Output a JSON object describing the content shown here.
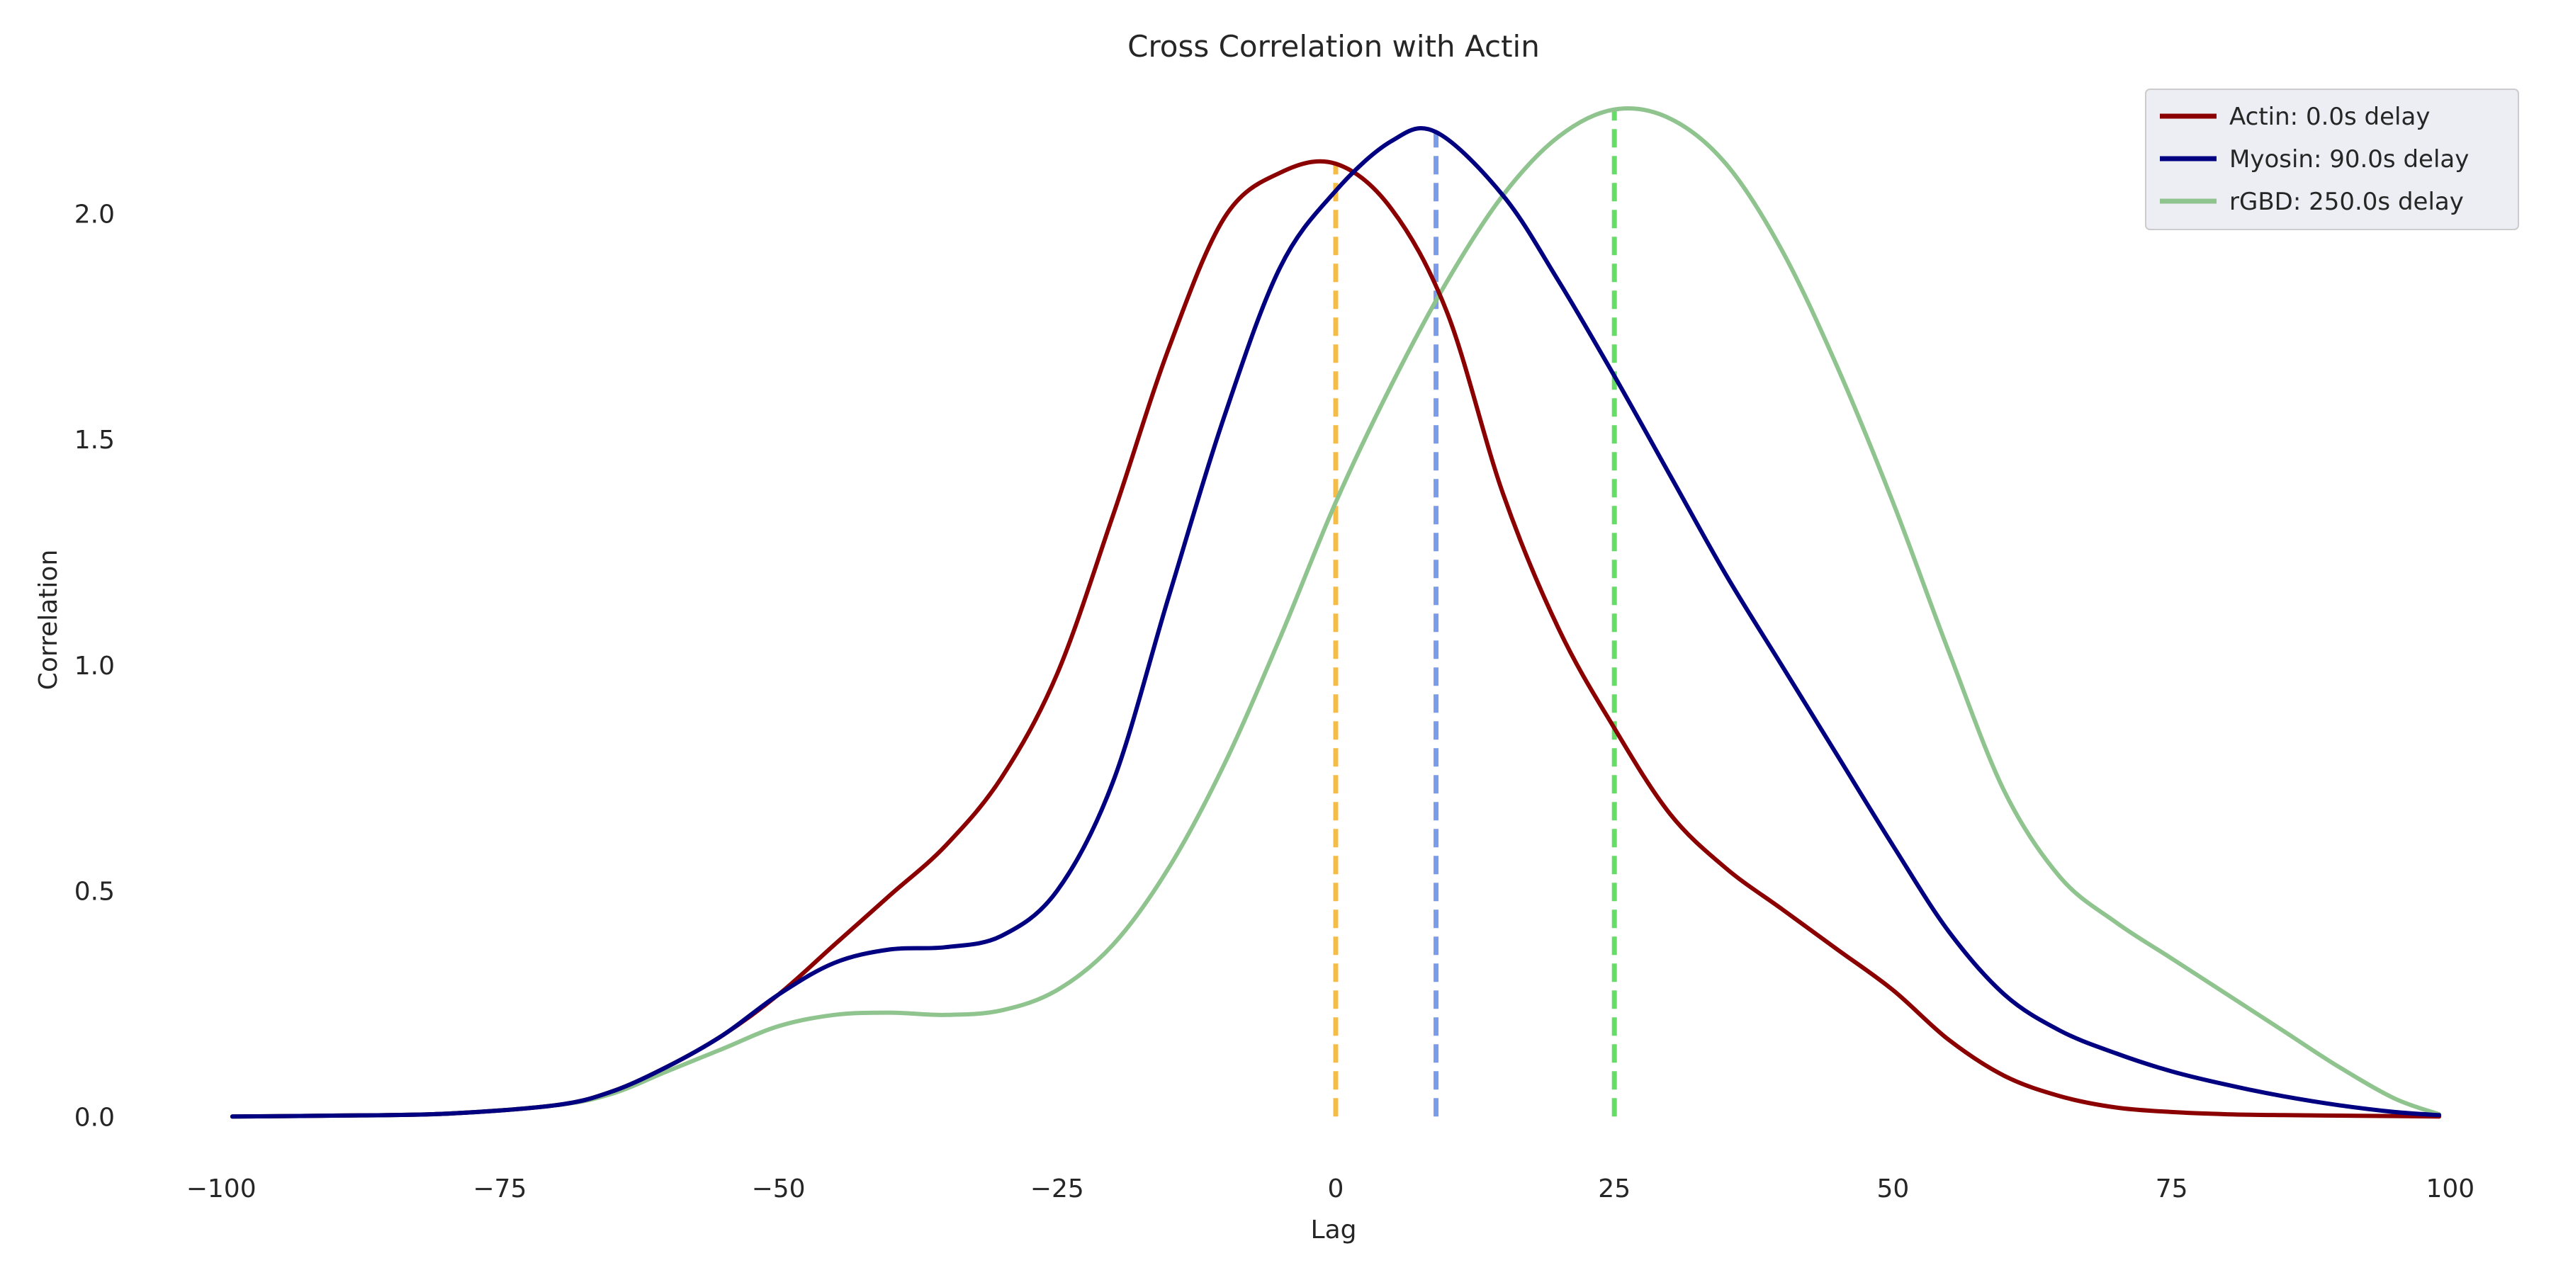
{
  "chart_data": {
    "type": "line",
    "title": "Cross Correlation with Actin",
    "xlabel": "Lag",
    "ylabel": "Correlation",
    "xlim": [
      -103,
      103
    ],
    "ylim": [
      -0.1,
      2.3
    ],
    "xticks": [
      -100,
      -75,
      -50,
      -25,
      0,
      25,
      50,
      75,
      100
    ],
    "xtick_labels": [
      "−100",
      "−75",
      "−50",
      "−25",
      "0",
      "25",
      "50",
      "75",
      "100"
    ],
    "yticks": [
      0.0,
      0.5,
      1.0,
      1.5,
      2.0
    ],
    "ytick_labels": [
      "0.0",
      "0.5",
      "1.0",
      "1.5",
      "2.0"
    ],
    "grid": false,
    "legend_position": "top-right",
    "series": [
      {
        "name": "Actin: 0.0s delay",
        "color": "#8b0000",
        "x": [
          -99,
          -90,
          -80,
          -70,
          -65,
          -60,
          -55,
          -50,
          -45,
          -40,
          -35,
          -30,
          -25,
          -20,
          -15,
          -10,
          -5,
          0,
          5,
          10,
          15,
          20,
          25,
          30,
          35,
          40,
          45,
          50,
          55,
          60,
          65,
          70,
          75,
          80,
          85,
          90,
          95,
          99
        ],
        "y": [
          0.0,
          0.002,
          0.006,
          0.025,
          0.055,
          0.11,
          0.18,
          0.27,
          0.38,
          0.49,
          0.6,
          0.75,
          0.98,
          1.33,
          1.7,
          1.99,
          2.09,
          2.11,
          2.01,
          1.78,
          1.38,
          1.08,
          0.86,
          0.67,
          0.55,
          0.46,
          0.37,
          0.28,
          0.17,
          0.09,
          0.045,
          0.02,
          0.01,
          0.005,
          0.003,
          0.002,
          0.001,
          0.0
        ]
      },
      {
        "name": "Myosin: 90.0s delay",
        "color": "#000080",
        "x": [
          -99,
          -90,
          -80,
          -70,
          -65,
          -60,
          -55,
          -50,
          -45,
          -40,
          -35,
          -30,
          -25,
          -20,
          -15,
          -10,
          -5,
          0,
          5,
          9,
          15,
          20,
          25,
          30,
          35,
          40,
          45,
          50,
          55,
          60,
          65,
          70,
          75,
          80,
          85,
          90,
          95,
          99
        ],
        "y": [
          0.0,
          0.002,
          0.006,
          0.025,
          0.055,
          0.11,
          0.18,
          0.27,
          0.34,
          0.37,
          0.375,
          0.4,
          0.5,
          0.74,
          1.15,
          1.55,
          1.88,
          2.05,
          2.16,
          2.18,
          2.04,
          1.85,
          1.64,
          1.42,
          1.2,
          1.0,
          0.8,
          0.6,
          0.41,
          0.27,
          0.19,
          0.14,
          0.1,
          0.07,
          0.045,
          0.025,
          0.01,
          0.003
        ]
      },
      {
        "name": "rGBD: 250.0s delay",
        "color": "#8fc48f",
        "x": [
          -99,
          -90,
          -80,
          -70,
          -65,
          -60,
          -55,
          -50,
          -45,
          -40,
          -35,
          -30,
          -25,
          -20,
          -15,
          -10,
          -5,
          0,
          5,
          10,
          15,
          20,
          25,
          30,
          35,
          40,
          45,
          50,
          55,
          60,
          65,
          70,
          75,
          80,
          85,
          90,
          95,
          99
        ],
        "y": [
          0.0,
          0.002,
          0.006,
          0.025,
          0.05,
          0.1,
          0.15,
          0.2,
          0.225,
          0.23,
          0.225,
          0.235,
          0.28,
          0.38,
          0.55,
          0.78,
          1.06,
          1.36,
          1.62,
          1.85,
          2.04,
          2.17,
          2.23,
          2.21,
          2.11,
          1.92,
          1.66,
          1.36,
          1.03,
          0.72,
          0.53,
          0.43,
          0.35,
          0.27,
          0.19,
          0.11,
          0.04,
          0.005
        ]
      }
    ],
    "vlines": [
      {
        "x": 0,
        "ymin": 0.0,
        "ymax": 2.11,
        "color": "#f5bd47"
      },
      {
        "x": 9,
        "ymin": 0.0,
        "ymax": 2.18,
        "color": "#7a9cea"
      },
      {
        "x": 25,
        "ymin": 0.0,
        "ymax": 2.23,
        "color": "#66dd66"
      }
    ]
  }
}
